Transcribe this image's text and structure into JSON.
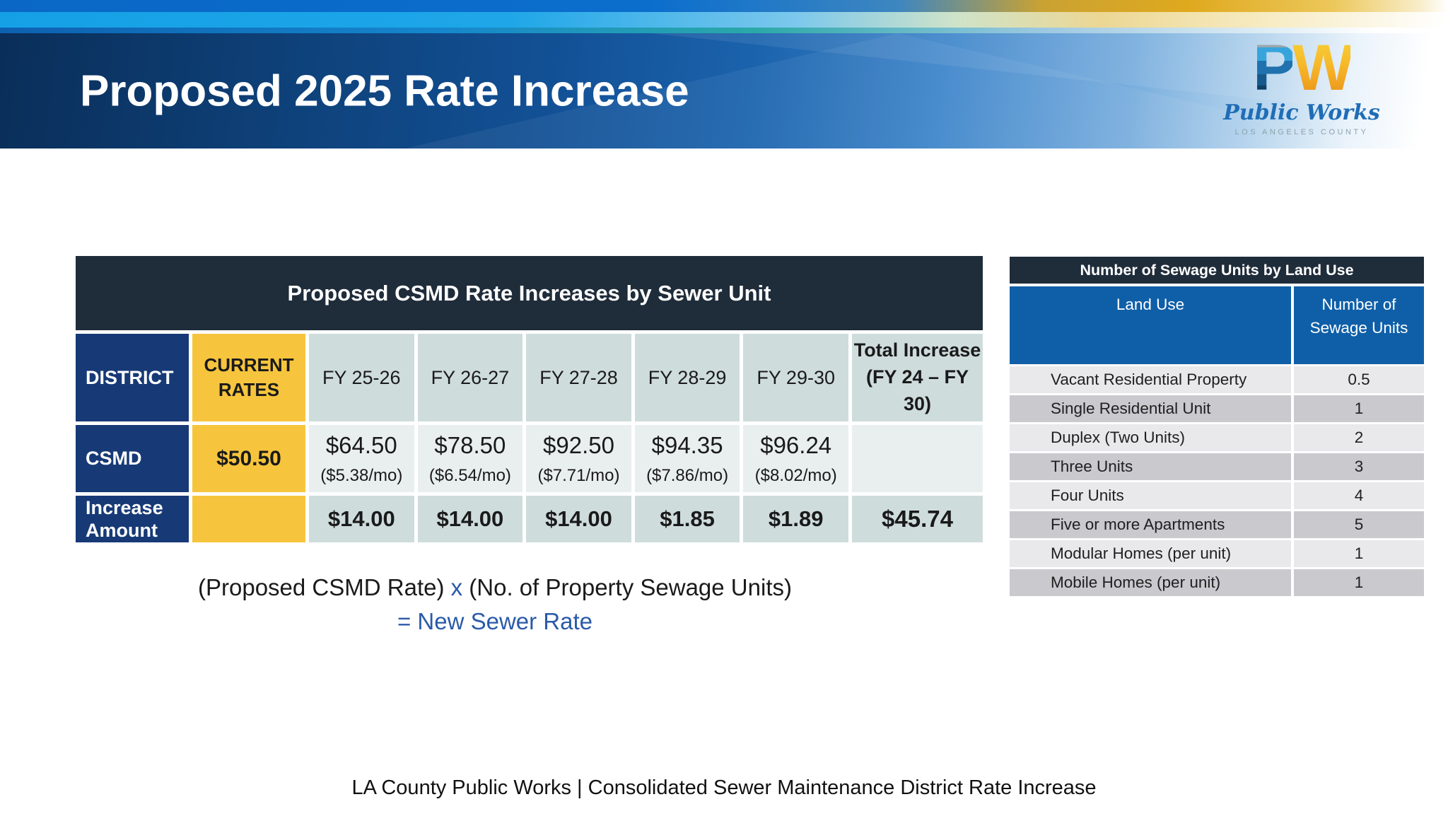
{
  "slide": {
    "title": "Proposed 2025 Rate Increase",
    "footer": "LA County Public Works | Consolidated Sewer Maintenance District Rate Increase"
  },
  "logo": {
    "letter_p": "P",
    "letter_w": "W",
    "name": "Public Works",
    "subtitle": "LOS ANGELES COUNTY"
  },
  "rate_table": {
    "title": "Proposed CSMD Rate Increases by Sewer Unit",
    "header": {
      "district": "DISTRICT",
      "current_line1": "CURRENT",
      "current_line2": "RATES",
      "fy": [
        "FY 25-26",
        "FY 26-27",
        "FY 27-28",
        "FY 28-29",
        "FY 29-30"
      ],
      "total_line1": "Total Increase",
      "total_line2": "(FY 24 – FY 30)"
    },
    "csmd_row": {
      "label": "CSMD",
      "current_rate": "$50.50",
      "values": [
        {
          "annual": "$64.50",
          "monthly": "($5.38/mo)"
        },
        {
          "annual": "$78.50",
          "monthly": "($6.54/mo)"
        },
        {
          "annual": "$92.50",
          "monthly": "($7.71/mo)"
        },
        {
          "annual": "$94.35",
          "monthly": "($7.86/mo)"
        },
        {
          "annual": "$96.24",
          "monthly": "($8.02/mo)"
        }
      ]
    },
    "increase_row": {
      "label_line1": "Increase",
      "label_line2": "Amount",
      "values": [
        "$14.00",
        "$14.00",
        "$14.00",
        "$1.85",
        "$1.89"
      ],
      "total": "$45.74"
    }
  },
  "formula": {
    "part1": "(Proposed CSMD Rate)",
    "operator": "x",
    "part2": "(No. of Property Sewage Units)",
    "result": "= New Sewer Rate"
  },
  "sewage_table": {
    "title": "Number of Sewage Units by Land Use",
    "col1": "Land Use",
    "col2": "Number of Sewage Units",
    "rows": [
      {
        "land_use": "Vacant Residential Property",
        "units": "0.5"
      },
      {
        "land_use": "Single Residential Unit",
        "units": "1"
      },
      {
        "land_use": "Duplex (Two Units)",
        "units": "2"
      },
      {
        "land_use": "Three Units",
        "units": "3"
      },
      {
        "land_use": "Four Units",
        "units": "4"
      },
      {
        "land_use": "Five or more Apartments",
        "units": "5"
      },
      {
        "land_use": "Modular Homes (per unit)",
        "units": "1"
      },
      {
        "land_use": "Mobile Homes (per unit)",
        "units": "1"
      }
    ]
  },
  "colors": {
    "banner_navy": "#0a2e59",
    "table_title_dark": "#1f2c3a",
    "row_label_navy": "#173a76",
    "current_rate_yellow": "#f7c53d",
    "fy_header_grey": "#cfdcdc",
    "value_cell_light": "#e9efef",
    "sewage_header_blue": "#0f5fa8",
    "sewage_row_light": "#e9e9ec",
    "sewage_row_dark": "#c9c9ce",
    "formula_blue": "#2a5aa8"
  }
}
